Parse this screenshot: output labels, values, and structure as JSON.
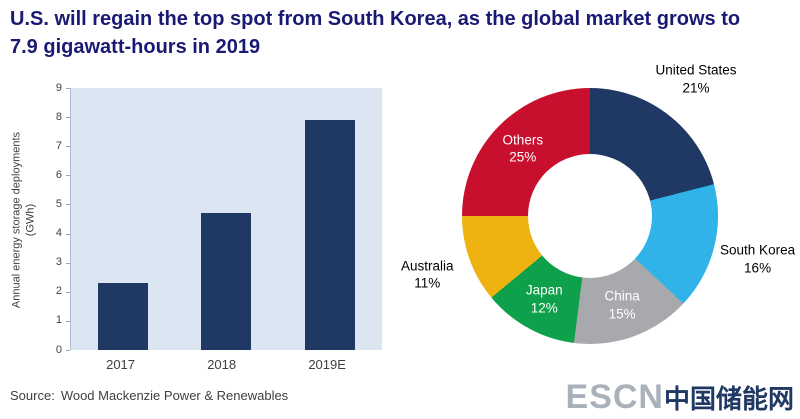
{
  "title": "U.S. will regain the top spot from South Korea, as the global market grows to 7.9 gigawatt-hours in 2019",
  "source_label": "Source:",
  "source_text": "Wood Mackenzie Power & Renewables",
  "logo": {
    "latin": "ESCN",
    "chinese": "中国储能网"
  },
  "colors": {
    "title": "#1a1a75",
    "bar": "#1f3864",
    "plot_background": "#dce6f2"
  },
  "chart_data": [
    {
      "type": "bar",
      "categories": [
        "2017",
        "2018",
        "2019E"
      ],
      "values": [
        2.3,
        4.7,
        7.9
      ],
      "title": "",
      "xlabel": "",
      "ylabel": "Annual energy storage deployments (GWh)",
      "ylim": [
        0,
        9
      ],
      "yticks": [
        0,
        1,
        2,
        3,
        4,
        5,
        6,
        7,
        8,
        9
      ],
      "bar_color": "#1f3864",
      "plot_bg": "#dce6f2",
      "grid": false,
      "legend": false
    },
    {
      "type": "pie",
      "donut": true,
      "start_angle_deg": 0,
      "direction": "clockwise",
      "slices": [
        {
          "label": "United States",
          "value": 21,
          "color": "#1f3864",
          "label_placement": "outside",
          "label_color": "#000000"
        },
        {
          "label": "South Korea",
          "value": 16,
          "color": "#2fb3e8",
          "label_placement": "outside",
          "label_color": "#000000"
        },
        {
          "label": "China",
          "value": 15,
          "color": "#a7a9ac",
          "label_placement": "inside",
          "label_color": "#ffffff"
        },
        {
          "label": "Japan",
          "value": 12,
          "color": "#0fa04c",
          "label_placement": "inside",
          "label_color": "#ffffff"
        },
        {
          "label": "Australia",
          "value": 11,
          "color": "#eeb211",
          "label_placement": "outside",
          "label_color": "#000000"
        },
        {
          "label": "Others",
          "value": 25,
          "color": "#c8102e",
          "label_placement": "inside",
          "label_color": "#ffffff"
        }
      ],
      "legend": false
    }
  ]
}
